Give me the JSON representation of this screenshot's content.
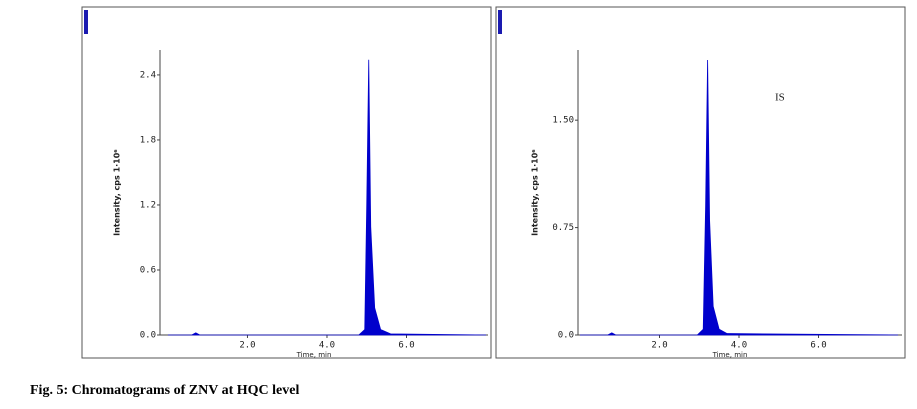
{
  "chart_data": [
    {
      "type": "area",
      "color": "#0000cc",
      "x_label": "Time, min",
      "y_label": "Intensity, cps 1·10⁶",
      "x": [
        0,
        0.6,
        0.7,
        0.8,
        4.8,
        4.95,
        5.0,
        5.05,
        5.1,
        5.2,
        5.35,
        5.6,
        8.0
      ],
      "values": [
        0,
        0,
        0.02,
        0,
        0,
        0.05,
        1.2,
        2.54,
        1.0,
        0.25,
        0.05,
        0.01,
        0
      ],
      "xlim": [
        -0.2,
        8.05
      ],
      "ylim": [
        0,
        2.63
      ],
      "xticks": [
        {
          "value": 2,
          "label": "2.0"
        },
        {
          "value": 4,
          "label": "4.0"
        },
        {
          "value": 6,
          "label": "6.0"
        }
      ],
      "yticks": [
        {
          "value": 0,
          "label": "0.0"
        },
        0.6,
        1.2,
        1.8,
        2.4
      ]
    },
    {
      "type": "area",
      "color": "#0000cc",
      "x_label": "Time, min",
      "y_label": "Intensity, cps 1·10⁶",
      "annotation": "IS",
      "x": [
        0,
        0.7,
        0.8,
        0.9,
        2.95,
        3.1,
        3.16,
        3.21,
        3.26,
        3.35,
        3.5,
        3.7,
        8.0
      ],
      "values": [
        0,
        0,
        0.015,
        0,
        0,
        0.04,
        0.9,
        1.92,
        0.8,
        0.2,
        0.04,
        0.01,
        0
      ],
      "xlim": [
        -0.05,
        8.1
      ],
      "ylim": [
        0,
        1.99
      ],
      "xticks": [
        {
          "value": 2,
          "label": "2.0"
        },
        {
          "value": 4,
          "label": "4.0"
        },
        {
          "value": 6,
          "label": "6.0"
        }
      ],
      "yticks": [
        {
          "value": 0,
          "label": "0.0"
        },
        0.75,
        {
          "value": 1.5,
          "label": "1.50"
        }
      ]
    }
  ],
  "caption": "Fig. 5: Chromatograms of ZNV at HQC level"
}
